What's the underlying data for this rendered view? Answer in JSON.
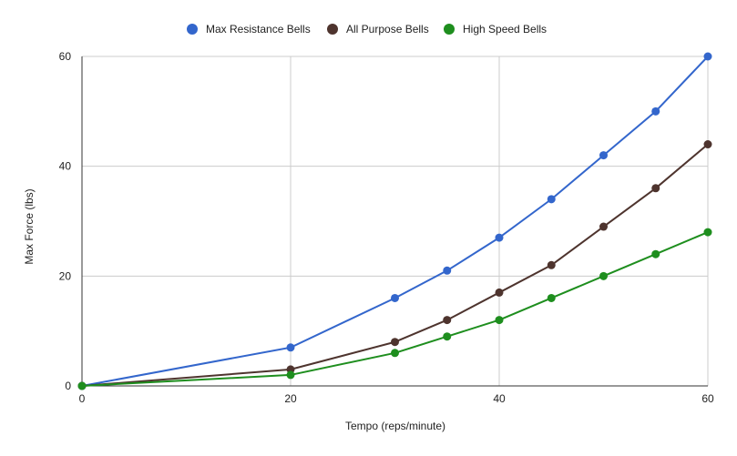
{
  "chart_data": {
    "type": "line",
    "title": "",
    "xlabel": "Tempo (reps/minute)",
    "ylabel": "Max Force (lbs)",
    "xlim": [
      0,
      60
    ],
    "ylim": [
      0,
      60
    ],
    "xticks": [
      0,
      20,
      40,
      60
    ],
    "yticks": [
      0,
      20,
      40,
      60
    ],
    "grid": true,
    "legend_position": "top",
    "x": [
      0,
      20,
      30,
      35,
      40,
      45,
      50,
      55,
      60
    ],
    "series": [
      {
        "name": "Max Resistance Bells",
        "color": "#3366cc",
        "values": [
          0,
          7,
          16,
          21,
          27,
          34,
          42,
          50,
          60
        ]
      },
      {
        "name": "All Purpose Bells",
        "color": "#4e342e",
        "values": [
          0,
          3,
          8,
          12,
          17,
          22,
          29,
          36,
          44
        ]
      },
      {
        "name": "High Speed Bells",
        "color": "#1e8e1e",
        "values": [
          0,
          2,
          6,
          9,
          12,
          16,
          20,
          24,
          28
        ]
      }
    ]
  }
}
